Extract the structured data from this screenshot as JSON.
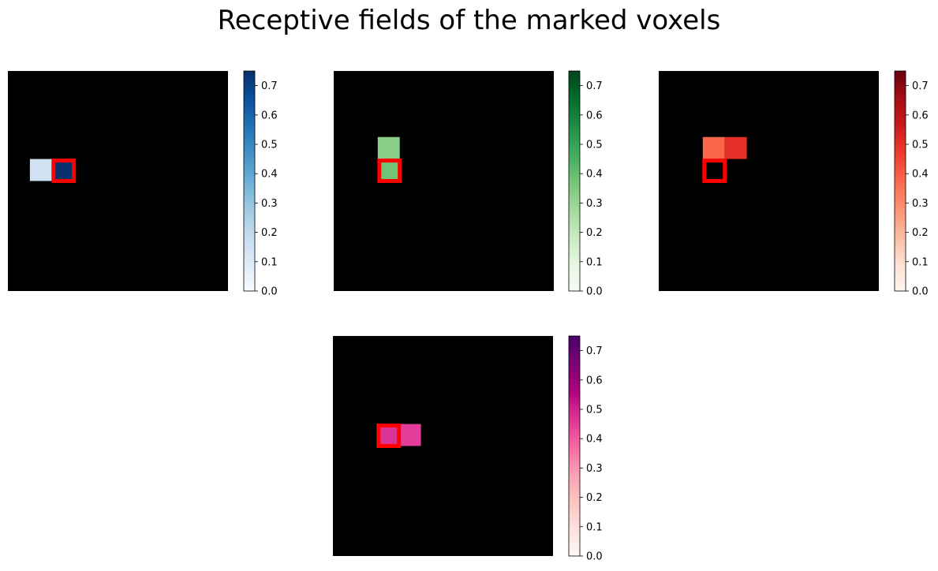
{
  "title": "Receptive fields of the marked voxels",
  "chart_data": [
    {
      "type": "heatmap",
      "colormap": "Blues",
      "grid_size": [
        10,
        10
      ],
      "cells": [
        {
          "row": 4,
          "col": 1,
          "value": 0.15
        },
        {
          "row": 4,
          "col": 2,
          "value": 0.75
        }
      ],
      "marked_voxel": {
        "row": 4,
        "col": 2
      },
      "colorbar": {
        "vmin": 0.0,
        "vmax": 0.75,
        "ticks": [
          0.0,
          0.1,
          0.2,
          0.3,
          0.4,
          0.5,
          0.6,
          0.7
        ],
        "tick_labels": [
          "0.0",
          "0.1",
          "0.2",
          "0.3",
          "0.4",
          "0.5",
          "0.6",
          "0.7"
        ]
      }
    },
    {
      "type": "heatmap",
      "colormap": "Greens",
      "grid_size": [
        10,
        10
      ],
      "cells": [
        {
          "row": 3,
          "col": 2,
          "value": 0.33
        },
        {
          "row": 4,
          "col": 2,
          "value": 0.38
        }
      ],
      "marked_voxel": {
        "row": 4,
        "col": 2
      },
      "colorbar": {
        "vmin": 0.0,
        "vmax": 0.75,
        "ticks": [
          0.0,
          0.1,
          0.2,
          0.3,
          0.4,
          0.5,
          0.6,
          0.7
        ],
        "tick_labels": [
          "0.0",
          "0.1",
          "0.2",
          "0.3",
          "0.4",
          "0.5",
          "0.6",
          "0.7"
        ]
      }
    },
    {
      "type": "heatmap",
      "colormap": "Reds",
      "grid_size": [
        10,
        10
      ],
      "cells": [
        {
          "row": 3,
          "col": 2,
          "value": 0.38
        },
        {
          "row": 3,
          "col": 3,
          "value": 0.5
        },
        {
          "row": 4,
          "col": 2,
          "value": 0.0
        }
      ],
      "marked_voxel": {
        "row": 4,
        "col": 2
      },
      "colorbar": {
        "vmin": 0.0,
        "vmax": 0.75,
        "ticks": [
          0.0,
          0.1,
          0.2,
          0.3,
          0.4,
          0.5,
          0.6,
          0.7
        ],
        "tick_labels": [
          "0.0",
          "0.1",
          "0.2",
          "0.3",
          "0.4",
          "0.5",
          "0.6",
          "0.7"
        ]
      }
    },
    {
      "type": "heatmap",
      "colormap": "RdPu",
      "grid_size": [
        10,
        10
      ],
      "cells": [
        {
          "row": 4,
          "col": 2,
          "value": 0.47
        },
        {
          "row": 4,
          "col": 3,
          "value": 0.45
        }
      ],
      "marked_voxel": {
        "row": 4,
        "col": 2
      },
      "colorbar": {
        "vmin": 0.0,
        "vmax": 0.75,
        "ticks": [
          0.0,
          0.1,
          0.2,
          0.3,
          0.4,
          0.5,
          0.6,
          0.7
        ],
        "tick_labels": [
          "0.0",
          "0.1",
          "0.2",
          "0.3",
          "0.4",
          "0.5",
          "0.6",
          "0.7"
        ]
      }
    }
  ]
}
